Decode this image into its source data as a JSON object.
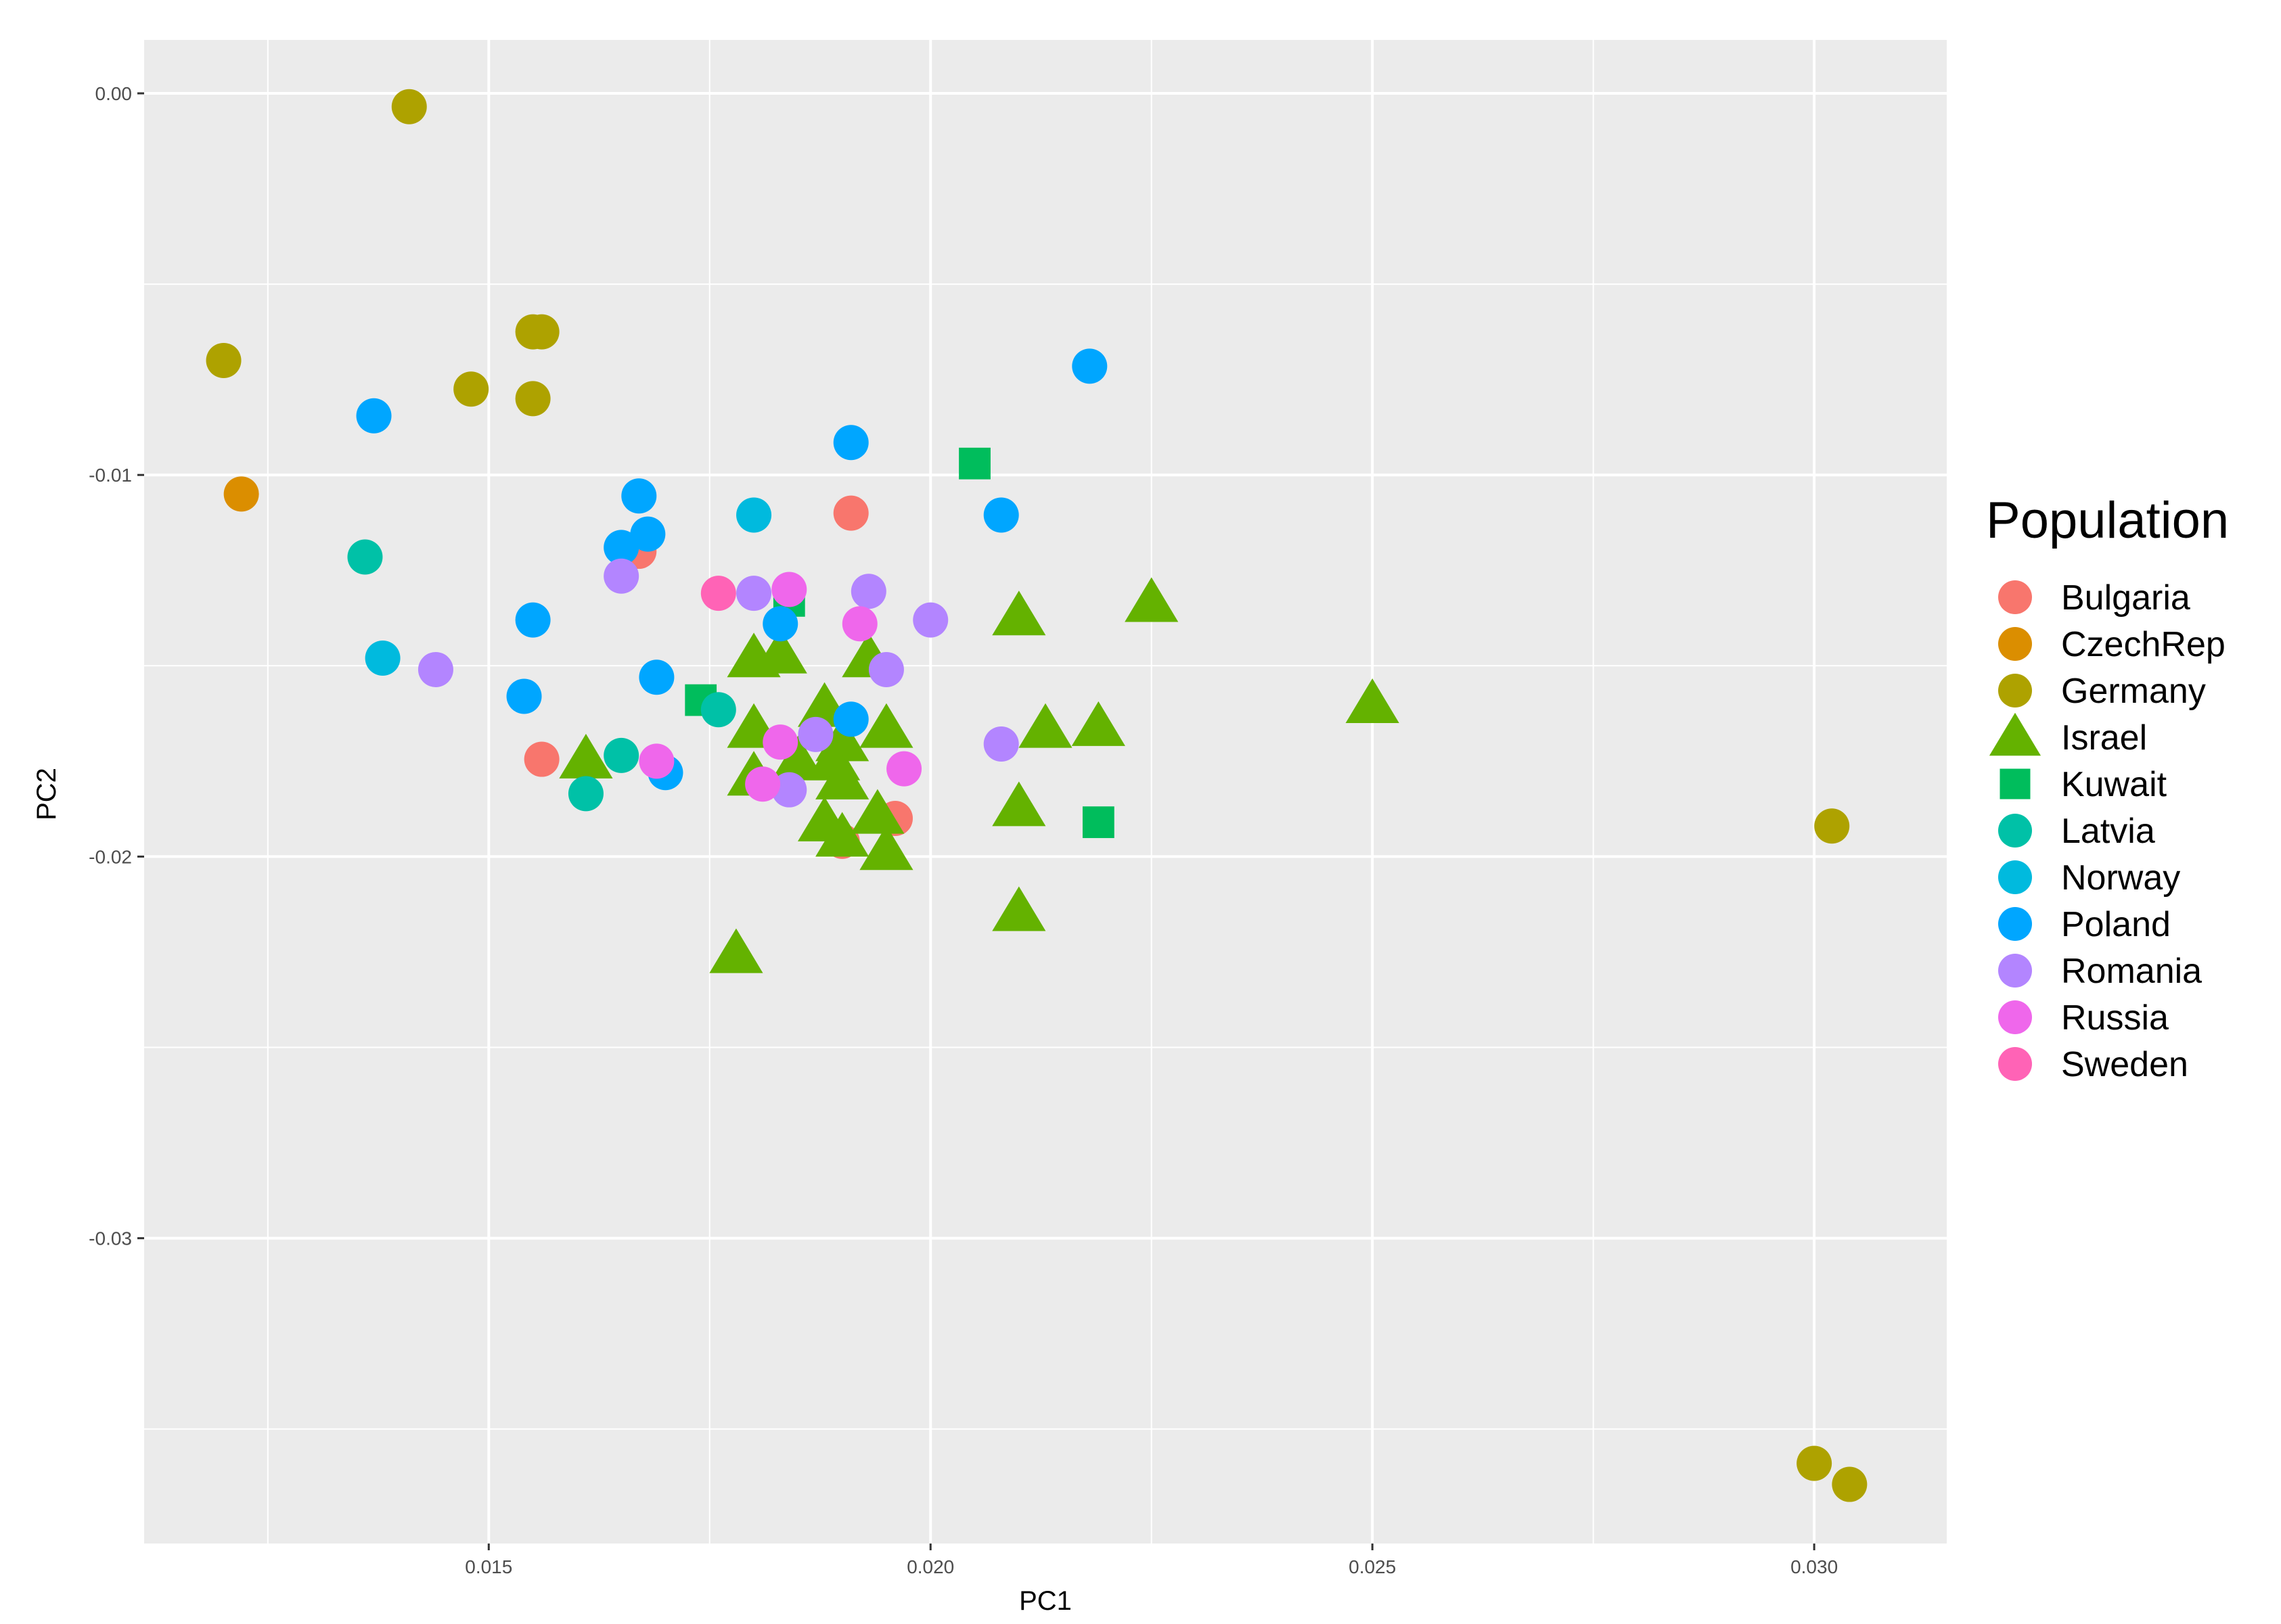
{
  "chart_data": {
    "type": "scatter",
    "title": "",
    "xlabel": "PC1",
    "ylabel": "PC2",
    "xlim": [
      0.0111,
      0.0315
    ],
    "ylim": [
      -0.038,
      0.0014
    ],
    "xticks": [
      {
        "value": 0.015,
        "label": "0.015"
      },
      {
        "value": 0.02,
        "label": "0.020"
      },
      {
        "value": 0.025,
        "label": "0.025"
      },
      {
        "value": 0.03,
        "label": "0.030"
      }
    ],
    "yticks": [
      {
        "value": 0.0,
        "label": "0.00"
      },
      {
        "value": -0.01,
        "label": "-0.01"
      },
      {
        "value": -0.02,
        "label": "-0.02"
      },
      {
        "value": -0.03,
        "label": "-0.03"
      }
    ],
    "grid": true,
    "background": "#ebebeb",
    "legend": {
      "title": "Population",
      "position": "right"
    },
    "series": [
      {
        "name": "Bulgaria",
        "color": "#F8766D",
        "shape": "circle",
        "points": [
          [
            0.0191,
            -0.011
          ],
          [
            0.0167,
            -0.012
          ],
          [
            0.0156,
            -0.01745
          ],
          [
            0.0196,
            -0.019
          ],
          [
            0.019,
            -0.0196
          ]
        ]
      },
      {
        "name": "CzechRep",
        "color": "#DB8E00",
        "shape": "circle",
        "points": [
          [
            0.0122,
            -0.0105
          ]
        ]
      },
      {
        "name": "Germany",
        "color": "#AEA200",
        "shape": "circle",
        "points": [
          [
            0.0141,
            -0.00035
          ],
          [
            0.012,
            -0.007
          ],
          [
            0.0148,
            -0.00775
          ],
          [
            0.0155,
            -0.00625
          ],
          [
            0.0156,
            -0.00625
          ],
          [
            0.0155,
            -0.008
          ],
          [
            0.0302,
            -0.0192
          ],
          [
            0.03,
            -0.0359
          ],
          [
            0.0304,
            -0.03645
          ]
        ]
      },
      {
        "name": "Israel",
        "color": "#64B200",
        "shape": "triangle",
        "points": [
          [
            0.0225,
            -0.01335
          ],
          [
            0.021,
            -0.0137
          ],
          [
            0.025,
            -0.016
          ],
          [
            0.0213,
            -0.01665
          ],
          [
            0.0219,
            -0.0166
          ],
          [
            0.021,
            -0.0187
          ],
          [
            0.021,
            -0.02145
          ],
          [
            0.0178,
            -0.02255
          ],
          [
            0.0161,
            -0.01745
          ],
          [
            0.018,
            -0.0148
          ],
          [
            0.0183,
            -0.0147
          ],
          [
            0.0193,
            -0.0148
          ],
          [
            0.0188,
            -0.0161
          ],
          [
            0.019,
            -0.017
          ],
          [
            0.0195,
            -0.01665
          ],
          [
            0.018,
            -0.01665
          ],
          [
            0.0185,
            -0.0175
          ],
          [
            0.018,
            -0.0179
          ],
          [
            0.0189,
            -0.0175
          ],
          [
            0.019,
            -0.018
          ],
          [
            0.0188,
            -0.0191
          ],
          [
            0.0194,
            -0.0189
          ],
          [
            0.019,
            -0.0195
          ],
          [
            0.0195,
            -0.01985
          ]
        ]
      },
      {
        "name": "Kuwait",
        "color": "#00BD5C",
        "shape": "square",
        "points": [
          [
            0.0205,
            -0.0097
          ],
          [
            0.0184,
            -0.0133
          ],
          [
            0.0174,
            -0.0159
          ],
          [
            0.0219,
            -0.0191
          ]
        ]
      },
      {
        "name": "Latvia",
        "color": "#00C1A7",
        "shape": "circle",
        "points": [
          [
            0.0136,
            -0.01215
          ],
          [
            0.0165,
            -0.01735
          ],
          [
            0.0161,
            -0.01835
          ],
          [
            0.0176,
            -0.01615
          ]
        ]
      },
      {
        "name": "Norway",
        "color": "#00BADE",
        "shape": "circle",
        "points": [
          [
            0.0138,
            -0.0148
          ],
          [
            0.018,
            -0.01105
          ]
        ]
      },
      {
        "name": "Poland",
        "color": "#00A6FF",
        "shape": "circle",
        "points": [
          [
            0.0218,
            -0.00715
          ],
          [
            0.0137,
            -0.00845
          ],
          [
            0.0191,
            -0.00915
          ],
          [
            0.0167,
            -0.01055
          ],
          [
            0.0168,
            -0.01155
          ],
          [
            0.0165,
            -0.0119
          ],
          [
            0.0208,
            -0.01105
          ],
          [
            0.0155,
            -0.0138
          ],
          [
            0.0154,
            -0.0158
          ],
          [
            0.0169,
            -0.0153
          ],
          [
            0.017,
            -0.0178
          ],
          [
            0.0191,
            -0.0164
          ],
          [
            0.0183,
            -0.0139
          ]
        ]
      },
      {
        "name": "Romania",
        "color": "#B385FF",
        "shape": "circle",
        "points": [
          [
            0.0165,
            -0.01265
          ],
          [
            0.018,
            -0.0131
          ],
          [
            0.0193,
            -0.01305
          ],
          [
            0.02,
            -0.0138
          ],
          [
            0.0144,
            -0.0151
          ],
          [
            0.0195,
            -0.0151
          ],
          [
            0.0208,
            -0.01705
          ],
          [
            0.0187,
            -0.0168
          ],
          [
            0.0184,
            -0.01825
          ]
        ]
      },
      {
        "name": "Russia",
        "color": "#EF67EB",
        "shape": "circle",
        "points": [
          [
            0.0184,
            -0.013
          ],
          [
            0.0192,
            -0.0139
          ],
          [
            0.0169,
            -0.0175
          ],
          [
            0.0197,
            -0.0177
          ],
          [
            0.0183,
            -0.017
          ],
          [
            0.0181,
            -0.0181
          ]
        ]
      },
      {
        "name": "Sweden",
        "color": "#FF63B6",
        "shape": "circle",
        "points": [
          [
            0.0176,
            -0.0131
          ]
        ]
      }
    ]
  }
}
